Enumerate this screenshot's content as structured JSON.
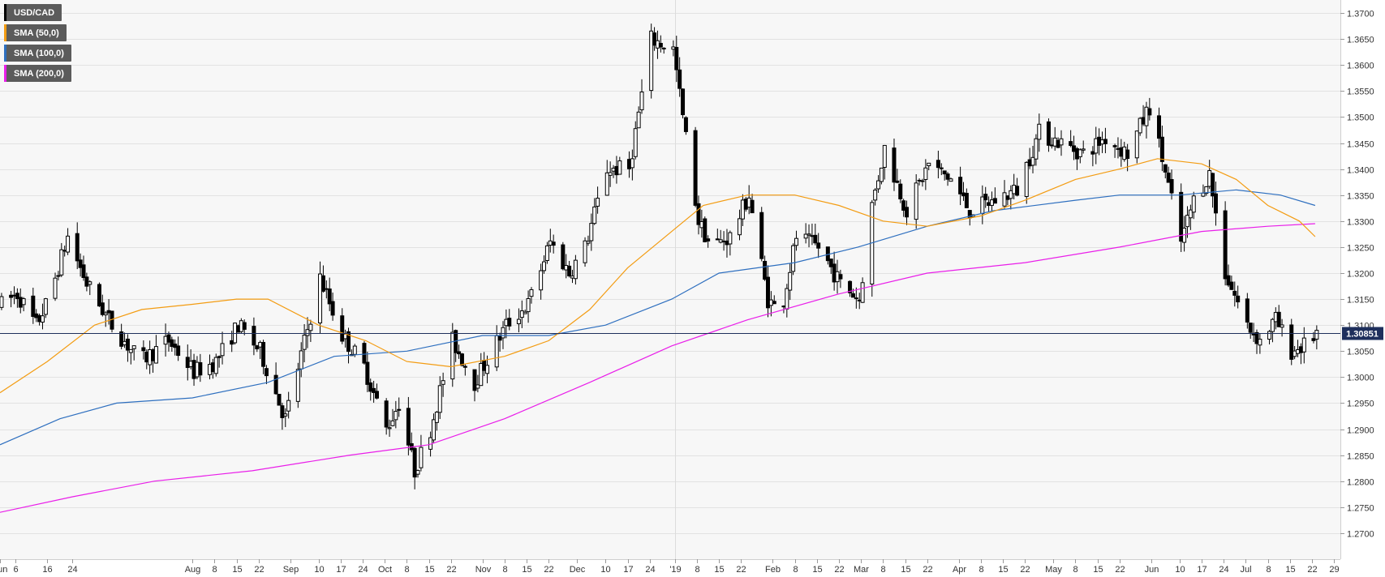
{
  "chart_data": {
    "type": "candlestick",
    "symbol": "USD/CAD",
    "last_price": "1.30851",
    "legend": [
      {
        "label": "USD/CAD",
        "color": "#000000"
      },
      {
        "label": "SMA (50,0)",
        "color": "#f39c12"
      },
      {
        "label": "SMA (100,0)",
        "color": "#2e6fbf"
      },
      {
        "label": "SMA (200,0)",
        "color": "#e91ee9"
      }
    ],
    "ylim": [
      1.265,
      1.3725
    ],
    "y_ticks": [
      "1.2700",
      "1.2750",
      "1.2800",
      "1.2850",
      "1.2900",
      "1.2950",
      "1.3000",
      "1.3050",
      "1.3100",
      "1.3150",
      "1.3200",
      "1.3250",
      "1.3300",
      "1.3350",
      "1.3400",
      "1.3450",
      "1.3500",
      "1.3550",
      "1.3600",
      "1.3650",
      "1.3700"
    ],
    "x_start": "2018-06-01",
    "x_end": "2019-07-31",
    "x_ticks": [
      {
        "date": "2018-06-01",
        "label": "Jun"
      },
      {
        "date": "2018-06-06",
        "label": "6"
      },
      {
        "date": "2018-06-16",
        "label": "16"
      },
      {
        "date": "2018-06-24",
        "label": "24"
      },
      {
        "date": "2018-08-01",
        "label": "Aug"
      },
      {
        "date": "2018-08-08",
        "label": "8"
      },
      {
        "date": "2018-08-15",
        "label": "15"
      },
      {
        "date": "2018-08-22",
        "label": "22"
      },
      {
        "date": "2018-09-01",
        "label": "Sep"
      },
      {
        "date": "2018-09-10",
        "label": "10"
      },
      {
        "date": "2018-09-17",
        "label": "17"
      },
      {
        "date": "2018-09-24",
        "label": "24"
      },
      {
        "date": "2018-10-01",
        "label": "Oct"
      },
      {
        "date": "2018-10-08",
        "label": "8"
      },
      {
        "date": "2018-10-15",
        "label": "15"
      },
      {
        "date": "2018-10-22",
        "label": "22"
      },
      {
        "date": "2018-11-01",
        "label": "Nov"
      },
      {
        "date": "2018-11-08",
        "label": "8"
      },
      {
        "date": "2018-11-15",
        "label": "15"
      },
      {
        "date": "2018-11-22",
        "label": "22"
      },
      {
        "date": "2018-12-01",
        "label": "Dec"
      },
      {
        "date": "2018-12-10",
        "label": "10"
      },
      {
        "date": "2018-12-17",
        "label": "17"
      },
      {
        "date": "2018-12-24",
        "label": "24"
      },
      {
        "date": "2019-01-01",
        "label": "'19"
      },
      {
        "date": "2019-01-08",
        "label": "8"
      },
      {
        "date": "2019-01-15",
        "label": "15"
      },
      {
        "date": "2019-01-22",
        "label": "22"
      },
      {
        "date": "2019-02-01",
        "label": "Feb"
      },
      {
        "date": "2019-02-08",
        "label": "8"
      },
      {
        "date": "2019-02-15",
        "label": "15"
      },
      {
        "date": "2019-02-22",
        "label": "22"
      },
      {
        "date": "2019-03-01",
        "label": "Mar"
      },
      {
        "date": "2019-03-08",
        "label": "8"
      },
      {
        "date": "2019-03-15",
        "label": "15"
      },
      {
        "date": "2019-03-22",
        "label": "22"
      },
      {
        "date": "2019-04-01",
        "label": "Apr"
      },
      {
        "date": "2019-04-08",
        "label": "8"
      },
      {
        "date": "2019-04-15",
        "label": "15"
      },
      {
        "date": "2019-04-22",
        "label": "22"
      },
      {
        "date": "2019-05-01",
        "label": "May"
      },
      {
        "date": "2019-05-08",
        "label": "8"
      },
      {
        "date": "2019-05-15",
        "label": "15"
      },
      {
        "date": "2019-05-22",
        "label": "22"
      },
      {
        "date": "2019-06-01",
        "label": "Jun"
      },
      {
        "date": "2019-06-10",
        "label": "10"
      },
      {
        "date": "2019-06-17",
        "label": "17"
      },
      {
        "date": "2019-06-24",
        "label": "24"
      },
      {
        "date": "2019-07-01",
        "label": "Jul"
      },
      {
        "date": "2019-07-08",
        "label": "8"
      },
      {
        "date": "2019-07-15",
        "label": "15"
      },
      {
        "date": "2019-07-22",
        "label": "22"
      },
      {
        "date": "2019-07-29",
        "label": "29"
      }
    ],
    "anchors": [
      [
        "2018-06-01",
        1.314
      ],
      [
        "2018-06-06",
        1.316
      ],
      [
        "2018-06-12",
        1.31
      ],
      [
        "2018-06-16",
        1.315
      ],
      [
        "2018-06-22",
        1.327
      ],
      [
        "2018-06-28",
        1.318
      ],
      [
        "2018-07-06",
        1.31
      ],
      [
        "2018-07-15",
        1.303
      ],
      [
        "2018-07-24",
        1.307
      ],
      [
        "2018-08-01",
        1.301
      ],
      [
        "2018-08-08",
        1.303
      ],
      [
        "2018-08-15",
        1.31
      ],
      [
        "2018-08-22",
        1.305
      ],
      [
        "2018-08-30",
        1.292
      ],
      [
        "2018-09-10",
        1.319
      ],
      [
        "2018-09-17",
        1.308
      ],
      [
        "2018-09-24",
        1.302
      ],
      [
        "2018-10-01",
        1.29
      ],
      [
        "2018-10-05",
        1.295
      ],
      [
        "2018-10-10",
        1.282
      ],
      [
        "2018-10-15",
        1.29
      ],
      [
        "2018-10-22",
        1.307
      ],
      [
        "2018-10-29",
        1.299
      ],
      [
        "2018-11-08",
        1.31
      ],
      [
        "2018-11-15",
        1.314
      ],
      [
        "2018-11-22",
        1.326
      ],
      [
        "2018-11-28",
        1.32
      ],
      [
        "2018-12-03",
        1.325
      ],
      [
        "2018-12-10",
        1.34
      ],
      [
        "2018-12-17",
        1.34
      ],
      [
        "2018-12-24",
        1.365
      ],
      [
        "2018-12-31",
        1.363
      ],
      [
        "2019-01-03",
        1.35
      ],
      [
        "2019-01-08",
        1.33
      ],
      [
        "2019-01-12",
        1.325
      ],
      [
        "2019-01-18",
        1.327
      ],
      [
        "2019-01-24",
        1.335
      ],
      [
        "2019-01-30",
        1.315
      ],
      [
        "2019-02-03",
        1.312
      ],
      [
        "2019-02-08",
        1.327
      ],
      [
        "2019-02-15",
        1.325
      ],
      [
        "2019-02-22",
        1.318
      ],
      [
        "2019-02-28",
        1.315
      ],
      [
        "2019-03-04",
        1.333
      ],
      [
        "2019-03-08",
        1.344
      ],
      [
        "2019-03-15",
        1.332
      ],
      [
        "2019-03-22",
        1.341
      ],
      [
        "2019-03-29",
        1.338
      ],
      [
        "2019-04-04",
        1.332
      ],
      [
        "2019-04-12",
        1.334
      ],
      [
        "2019-04-19",
        1.336
      ],
      [
        "2019-04-26",
        1.347
      ],
      [
        "2019-05-03",
        1.345
      ],
      [
        "2019-05-10",
        1.343
      ],
      [
        "2019-05-17",
        1.346
      ],
      [
        "2019-05-24",
        1.343
      ],
      [
        "2019-05-31",
        1.352
      ],
      [
        "2019-06-04",
        1.342
      ],
      [
        "2019-06-10",
        1.326
      ],
      [
        "2019-06-14",
        1.334
      ],
      [
        "2019-06-19",
        1.339
      ],
      [
        "2019-06-24",
        1.32
      ],
      [
        "2019-07-01",
        1.31
      ],
      [
        "2019-07-05",
        1.307
      ],
      [
        "2019-07-10",
        1.311
      ],
      [
        "2019-07-15",
        1.305
      ],
      [
        "2019-07-19",
        1.306
      ],
      [
        "2019-07-23",
        1.3085
      ]
    ],
    "sma_50": [
      [
        "2018-06-01",
        1.297
      ],
      [
        "2018-06-16",
        1.303
      ],
      [
        "2018-07-01",
        1.31
      ],
      [
        "2018-07-16",
        1.313
      ],
      [
        "2018-08-01",
        1.314
      ],
      [
        "2018-08-15",
        1.315
      ],
      [
        "2018-08-25",
        1.315
      ],
      [
        "2018-09-10",
        1.31
      ],
      [
        "2018-09-25",
        1.307
      ],
      [
        "2018-10-08",
        1.303
      ],
      [
        "2018-10-22",
        1.302
      ],
      [
        "2018-11-08",
        1.304
      ],
      [
        "2018-11-22",
        1.307
      ],
      [
        "2018-12-05",
        1.313
      ],
      [
        "2018-12-17",
        1.321
      ],
      [
        "2018-12-31",
        1.328
      ],
      [
        "2019-01-10",
        1.333
      ],
      [
        "2019-01-24",
        1.335
      ],
      [
        "2019-02-08",
        1.335
      ],
      [
        "2019-02-22",
        1.333
      ],
      [
        "2019-03-08",
        1.33
      ],
      [
        "2019-03-22",
        1.329
      ],
      [
        "2019-04-08",
        1.331
      ],
      [
        "2019-04-22",
        1.334
      ],
      [
        "2019-05-08",
        1.338
      ],
      [
        "2019-05-22",
        1.34
      ],
      [
        "2019-06-03",
        1.342
      ],
      [
        "2019-06-17",
        1.341
      ],
      [
        "2019-06-28",
        1.338
      ],
      [
        "2019-07-08",
        1.333
      ],
      [
        "2019-07-18",
        1.33
      ],
      [
        "2019-07-23",
        1.327
      ]
    ],
    "sma_100": [
      [
        "2018-06-01",
        1.287
      ],
      [
        "2018-06-20",
        1.292
      ],
      [
        "2018-07-08",
        1.295
      ],
      [
        "2018-08-01",
        1.296
      ],
      [
        "2018-08-25",
        1.299
      ],
      [
        "2018-09-15",
        1.304
      ],
      [
        "2018-10-08",
        1.305
      ],
      [
        "2018-11-01",
        1.308
      ],
      [
        "2018-11-22",
        1.308
      ],
      [
        "2018-12-10",
        1.31
      ],
      [
        "2018-12-31",
        1.315
      ],
      [
        "2019-01-15",
        1.32
      ],
      [
        "2019-02-08",
        1.322
      ],
      [
        "2019-02-28",
        1.325
      ],
      [
        "2019-03-22",
        1.329
      ],
      [
        "2019-04-12",
        1.332
      ],
      [
        "2019-05-08",
        1.334
      ],
      [
        "2019-05-22",
        1.335
      ],
      [
        "2019-06-10",
        1.335
      ],
      [
        "2019-06-28",
        1.336
      ],
      [
        "2019-07-12",
        1.335
      ],
      [
        "2019-07-23",
        1.333
      ]
    ],
    "sma_200": [
      [
        "2018-06-01",
        1.274
      ],
      [
        "2018-06-24",
        1.277
      ],
      [
        "2018-07-20",
        1.28
      ],
      [
        "2018-08-20",
        1.282
      ],
      [
        "2018-09-20",
        1.285
      ],
      [
        "2018-10-15",
        1.287
      ],
      [
        "2018-11-08",
        1.292
      ],
      [
        "2018-12-05",
        1.299
      ],
      [
        "2018-12-31",
        1.306
      ],
      [
        "2019-01-24",
        1.311
      ],
      [
        "2019-02-22",
        1.316
      ],
      [
        "2019-03-22",
        1.32
      ],
      [
        "2019-04-22",
        1.322
      ],
      [
        "2019-05-22",
        1.325
      ],
      [
        "2019-06-17",
        1.328
      ],
      [
        "2019-07-08",
        1.329
      ],
      [
        "2019-07-23",
        1.3295
      ]
    ]
  }
}
